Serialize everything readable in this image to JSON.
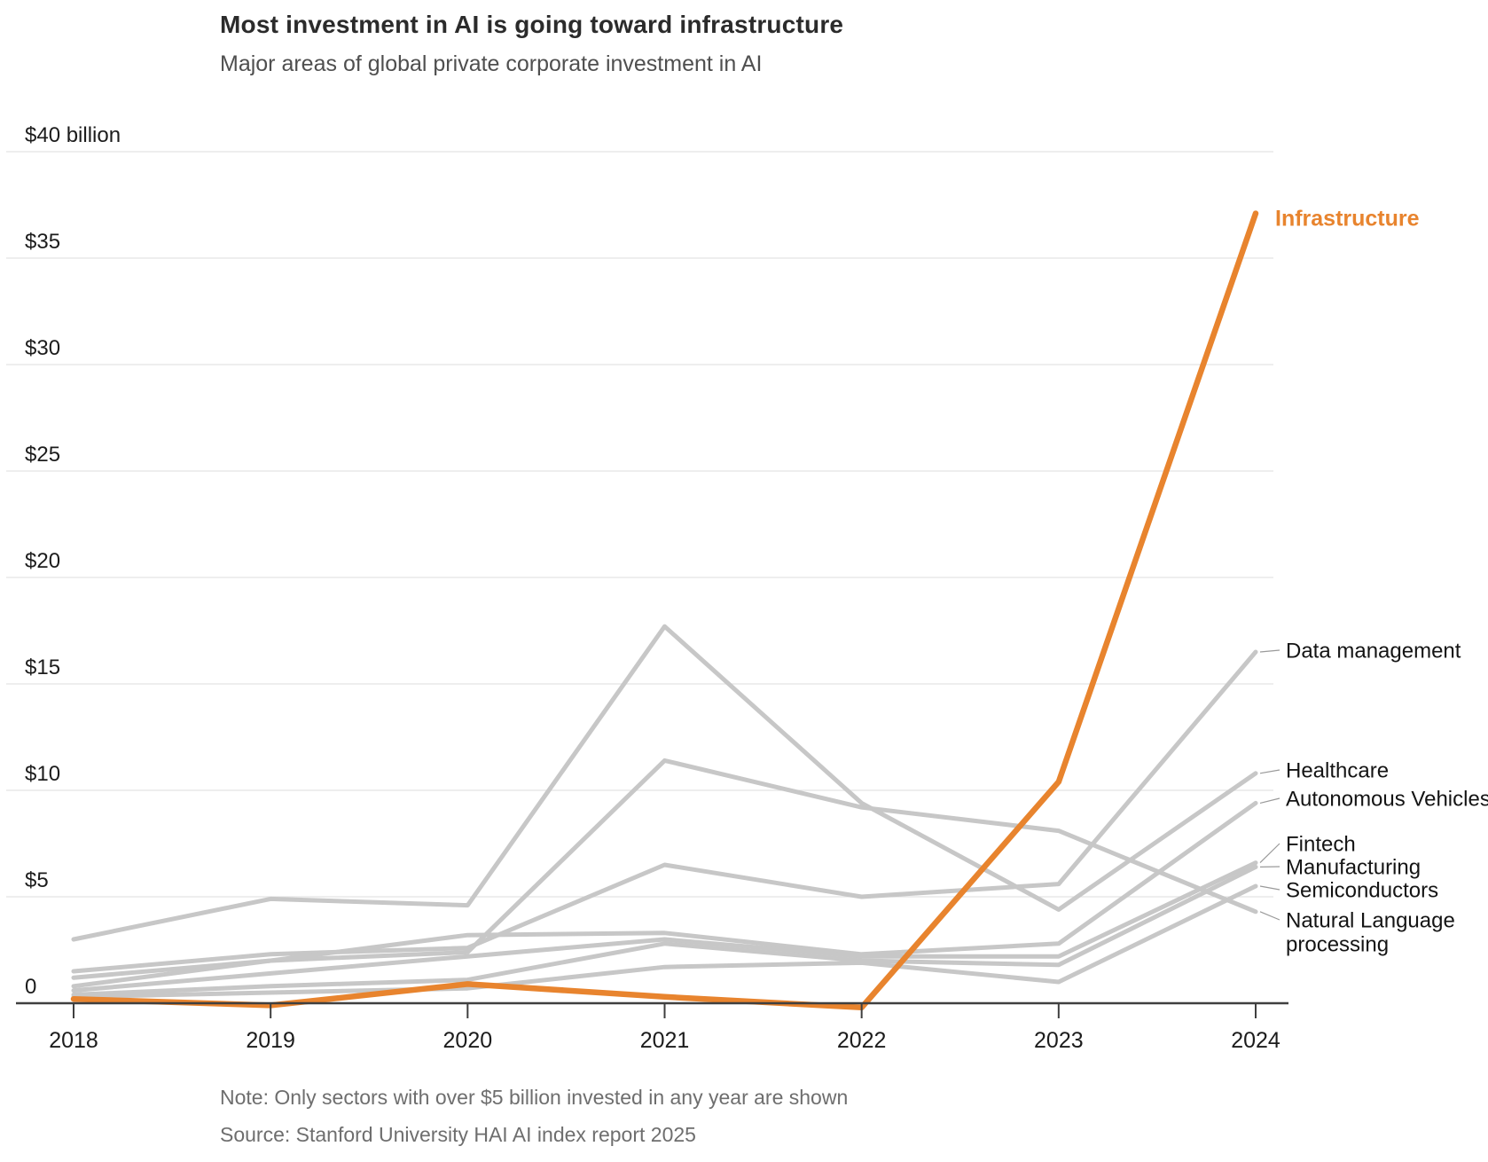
{
  "header": {
    "title": "Most investment in AI is going toward infrastructure",
    "subtitle": "Major areas of global private corporate investment in AI"
  },
  "footer": {
    "note": "Note: Only sectors with over $5 billion invested in any year are shown",
    "source": "Source: Stanford University HAI AI index report 2025"
  },
  "chart_data": {
    "type": "line",
    "unit": "billions of US dollars",
    "x": [
      2018,
      2019,
      2020,
      2021,
      2022,
      2023,
      2024
    ],
    "x_tick_labels": [
      "2018",
      "2019",
      "2020",
      "2021",
      "2022",
      "2023",
      "2024"
    ],
    "y_ticks": [
      40,
      35,
      30,
      25,
      20,
      15,
      10,
      5,
      0
    ],
    "y_tick_labels": [
      "$40 billion",
      "$35",
      "$30",
      "$25",
      "$20",
      "$15",
      "$10",
      "$5",
      "0"
    ],
    "ylim": [
      0,
      40
    ],
    "grid": "horizontal",
    "legend_position": "right-edge-annotations",
    "colors": {
      "highlight": "#e8842e",
      "muted": "#c7c7c7",
      "leader": "#9a9a9a"
    },
    "series": [
      {
        "name": "Data management",
        "label_lines": [
          "Data management"
        ],
        "color": "#c7c7c7",
        "values": [
          1.5,
          2.3,
          2.6,
          6.5,
          5.0,
          5.6,
          16.5
        ]
      },
      {
        "name": "Healthcare",
        "label_lines": [
          "Healthcare"
        ],
        "color": "#c7c7c7",
        "values": [
          3.0,
          4.9,
          4.6,
          17.7,
          9.4,
          4.4,
          10.8
        ]
      },
      {
        "name": "Autonomous Vehicles",
        "label_lines": [
          "Autonomous Vehicles"
        ],
        "color": "#c7c7c7",
        "values": [
          1.2,
          2.0,
          3.2,
          3.3,
          2.3,
          2.8,
          9.4
        ]
      },
      {
        "name": "Fintech",
        "label_lines": [
          "Fintech"
        ],
        "color": "#c7c7c7",
        "values": [
          0.6,
          1.4,
          2.2,
          3.0,
          2.2,
          2.2,
          6.6
        ]
      },
      {
        "name": "Manufacturing",
        "label_lines": [
          "Manufacturing"
        ],
        "color": "#c7c7c7",
        "values": [
          0.4,
          0.8,
          1.1,
          2.8,
          2.0,
          1.8,
          6.4
        ]
      },
      {
        "name": "Semiconductors",
        "label_lines": [
          "Semiconductors"
        ],
        "color": "#c7c7c7",
        "values": [
          0.3,
          0.5,
          0.7,
          1.7,
          1.9,
          1.0,
          5.5
        ]
      },
      {
        "name": "Natural Language processing",
        "label_lines": [
          "Natural Language",
          "processing"
        ],
        "color": "#c7c7c7",
        "values": [
          0.8,
          2.0,
          2.4,
          11.4,
          9.2,
          8.1,
          4.3
        ]
      },
      {
        "name": "Infrastructure",
        "label_lines": [
          "Infrastructure"
        ],
        "color": "#e8842e",
        "highlight": true,
        "values": [
          0.2,
          -0.1,
          0.9,
          0.3,
          -0.2,
          10.4,
          37.1
        ]
      }
    ]
  }
}
